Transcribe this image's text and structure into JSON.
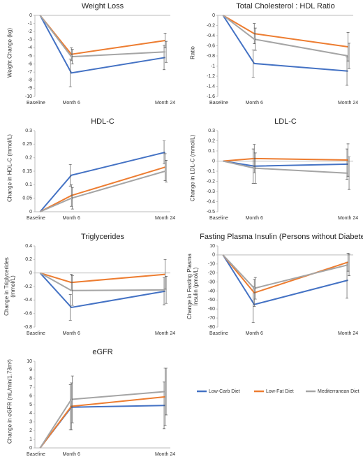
{
  "legend": [
    {
      "name": "Low-Carb Diet",
      "color": "#4472c4"
    },
    {
      "name": "Low-Fat Diet",
      "color": "#ed7d31"
    },
    {
      "name": "Mediterranean Diet",
      "color": "#a5a5a5"
    }
  ],
  "chart_data": [
    {
      "type": "line",
      "title": "Weight Loss",
      "ylabel": "Weight Change (kg)",
      "x": [
        0,
        6,
        24
      ],
      "xticks": [
        {
          "value": 0,
          "label": "Baseline"
        },
        {
          "value": 6,
          "label": "Month 6"
        },
        {
          "value": 24,
          "label": "Month 24"
        }
      ],
      "xlim": [
        -1,
        25
      ],
      "ylim": [
        -10,
        0
      ],
      "yticks": [
        0,
        -1,
        -2,
        -3,
        -4,
        -5,
        -6,
        -7,
        -8,
        -9,
        -10
      ],
      "series": [
        {
          "values": [
            0,
            -7.1,
            -5.2
          ],
          "errors": [
            null,
            1.7,
            1.5
          ]
        },
        {
          "values": [
            0,
            -4.8,
            -3.1
          ],
          "errors": [
            null,
            0.8,
            0.9
          ]
        },
        {
          "values": [
            0,
            -5.1,
            -4.5
          ],
          "errors": [
            null,
            0.9,
            1.3
          ]
        }
      ]
    },
    {
      "type": "line",
      "title": "Total Cholesterol : HDL Ratio",
      "ylabel": "Ratio",
      "x": [
        0,
        6,
        24
      ],
      "xticks": [
        {
          "value": 0,
          "label": "Baseline"
        },
        {
          "value": 6,
          "label": "Month 6"
        },
        {
          "value": 24,
          "label": "Month 24"
        }
      ],
      "xlim": [
        -1,
        25
      ],
      "ylim": [
        -1.6,
        0
      ],
      "yticks": [
        0,
        -0.2,
        -0.4,
        -0.6,
        -0.8,
        -1,
        -1.2,
        -1.4,
        -1.6
      ],
      "series": [
        {
          "values": [
            0,
            -0.95,
            -1.1
          ],
          "errors": [
            null,
            0.27,
            0.28
          ]
        },
        {
          "values": [
            0,
            -0.36,
            -0.62
          ],
          "errors": [
            null,
            0.2,
            0.28
          ]
        },
        {
          "values": [
            0,
            -0.47,
            -0.8
          ],
          "errors": [
            null,
            0.22,
            0.25
          ]
        }
      ]
    },
    {
      "type": "line",
      "title": "HDL-C",
      "ylabel": "Change in HDL-C (mmol/L)",
      "x": [
        0,
        6,
        24
      ],
      "xticks": [
        {
          "value": 0,
          "label": "Baseline"
        },
        {
          "value": 6,
          "label": "Month 6"
        },
        {
          "value": 24,
          "label": "Month 24"
        }
      ],
      "xlim": [
        -1,
        25
      ],
      "ylim": [
        0,
        0.3
      ],
      "yticks": [
        0,
        0.05,
        0.1,
        0.15,
        0.2,
        0.25,
        0.3
      ],
      "series": [
        {
          "values": [
            0,
            0.135,
            0.22
          ],
          "errors": [
            null,
            0.04,
            0.042
          ]
        },
        {
          "values": [
            0,
            0.06,
            0.165
          ],
          "errors": [
            null,
            0.04,
            0.05
          ]
        },
        {
          "values": [
            0,
            0.05,
            0.15
          ],
          "errors": [
            null,
            0.04,
            0.04
          ]
        }
      ]
    },
    {
      "type": "line",
      "title": "LDL-C",
      "ylabel": "Change in LDL-C (mmol/L)",
      "x": [
        0,
        6,
        24
      ],
      "xticks": [
        {
          "value": 0,
          "label": "Baseline"
        },
        {
          "value": 6,
          "label": "Month 6"
        },
        {
          "value": 24,
          "label": "Month 24"
        }
      ],
      "xlim": [
        -1,
        25
      ],
      "ylim": [
        -0.5,
        0.3
      ],
      "yticks": [
        0.3,
        0.2,
        0.1,
        0,
        -0.1,
        -0.2,
        -0.3,
        -0.4,
        -0.5
      ],
      "series": [
        {
          "values": [
            0,
            -0.05,
            -0.03
          ],
          "errors": [
            null,
            0.17,
            0.15
          ]
        },
        {
          "values": [
            0,
            0.025,
            0.01
          ],
          "errors": [
            null,
            0.14,
            0.16
          ]
        },
        {
          "values": [
            0,
            -0.07,
            -0.12
          ],
          "errors": [
            null,
            0.15,
            0.16
          ]
        }
      ]
    },
    {
      "type": "line",
      "title": "Triglycerides",
      "ylabel": "Change in Triglycerides (mmol/L)",
      "x": [
        0,
        6,
        24
      ],
      "xticks": [
        {
          "value": 0,
          "label": "Baseline"
        },
        {
          "value": 6,
          "label": "Month 6"
        },
        {
          "value": 24,
          "label": "Month 24"
        }
      ],
      "xlim": [
        -1,
        25
      ],
      "ylim": [
        -0.8,
        0.4
      ],
      "yticks": [
        0.4,
        0.2,
        0,
        -0.2,
        -0.4,
        -0.6,
        -0.8
      ],
      "series": [
        {
          "values": [
            0,
            -0.51,
            -0.27
          ],
          "errors": [
            null,
            0.19,
            0.2
          ]
        },
        {
          "values": [
            0,
            -0.14,
            -0.02
          ],
          "errors": [
            null,
            0.12,
            0.22
          ]
        },
        {
          "values": [
            0,
            -0.26,
            -0.25
          ],
          "errors": [
            null,
            0.22,
            0.2
          ]
        }
      ]
    },
    {
      "type": "line",
      "title": "Fasting Plasma Insulin (Persons without Diabetes)",
      "ylabel": "Change in Fasting Plasma Insulin (pmol/L)",
      "x": [
        0,
        6,
        24
      ],
      "xticks": [
        {
          "value": 0,
          "label": "Baseline"
        },
        {
          "value": 6,
          "label": "Month 6"
        },
        {
          "value": 24,
          "label": "Month 24"
        }
      ],
      "xlim": [
        -1,
        25
      ],
      "ylim": [
        -80,
        10
      ],
      "yticks": [
        10,
        0,
        -10,
        -20,
        -30,
        -40,
        -50,
        -60,
        -70,
        -80
      ],
      "series": [
        {
          "values": [
            0,
            -55,
            -28
          ],
          "errors": [
            null,
            20,
            20
          ]
        },
        {
          "values": [
            0,
            -42,
            -8
          ],
          "errors": [
            null,
            15,
            10
          ]
        },
        {
          "values": [
            0,
            -37,
            -11
          ],
          "errors": [
            null,
            12,
            12
          ]
        }
      ]
    },
    {
      "type": "line",
      "title": "eGFR",
      "ylabel": "Change in eGFR (mL/min/1.73m²)",
      "x": [
        0,
        6,
        24
      ],
      "xticks": [
        {
          "value": 0,
          "label": "Baseline"
        },
        {
          "value": 6,
          "label": "Month 6"
        },
        {
          "value": 24,
          "label": "Month 24"
        }
      ],
      "xlim": [
        -1,
        25
      ],
      "ylim": [
        0,
        10
      ],
      "yticks": [
        0,
        1,
        2,
        3,
        4,
        5,
        6,
        7,
        8,
        9,
        10
      ],
      "series": [
        {
          "values": [
            0,
            4.7,
            4.9
          ],
          "errors": [
            null,
            2.6,
            2.7
          ]
        },
        {
          "values": [
            0,
            4.8,
            5.9
          ],
          "errors": [
            null,
            2.7,
            3.3
          ]
        },
        {
          "values": [
            0,
            5.6,
            6.5
          ],
          "errors": [
            null,
            2.7,
            2.7
          ]
        }
      ]
    }
  ]
}
